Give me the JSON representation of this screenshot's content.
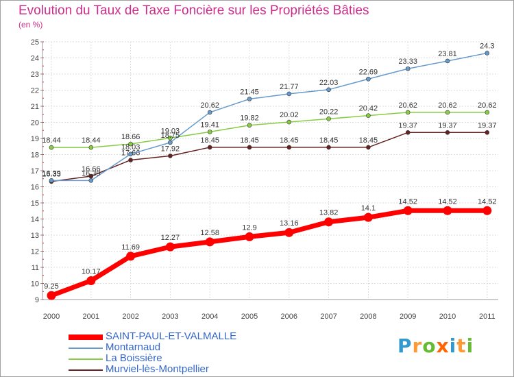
{
  "chart_data": {
    "type": "line",
    "title": "Evolution du Taux de Taxe Foncière sur les Propriétés Bâties",
    "ylabel": "(en %)",
    "xlabel": "",
    "categories": [
      "2000",
      "2001",
      "2002",
      "2003",
      "2004",
      "2005",
      "2006",
      "2007",
      "2008",
      "2009",
      "2010",
      "2011"
    ],
    "ylim": [
      9,
      25
    ],
    "yticks": [
      9,
      10,
      11,
      12,
      13,
      14,
      15,
      16,
      17,
      18,
      19,
      20,
      21,
      22,
      23,
      24,
      25
    ],
    "grid": true,
    "series": [
      {
        "name": "SAINT-PAUL-ET-VALMALLE",
        "color": "#ff0000",
        "values": [
          9.25,
          10.17,
          11.69,
          12.27,
          12.58,
          12.9,
          13.16,
          13.82,
          14.1,
          14.52,
          14.52,
          14.52
        ],
        "labels": [
          "9.25",
          "10.17",
          "11.69",
          "12.27",
          "12.58",
          "12.9",
          "13.16",
          "13.82",
          "14.1",
          "14.52",
          "14.52",
          "14.52"
        ]
      },
      {
        "name": "Montarnaud",
        "color": "#6699cc",
        "values": [
          16.39,
          16.39,
          18.03,
          18.75,
          20.62,
          21.45,
          21.77,
          22.03,
          22.69,
          23.33,
          23.81,
          24.3
        ],
        "labels": [
          "16.39",
          "16.39",
          "18.03",
          "18.75",
          "20.62",
          "21.45",
          "21.77",
          "22.03",
          "22.69",
          "23.33",
          "23.81",
          "24.3"
        ]
      },
      {
        "name": "La Boissière",
        "color": "#88cc44",
        "values": [
          18.44,
          18.44,
          18.66,
          19.03,
          19.41,
          19.82,
          20.02,
          20.22,
          20.42,
          20.62,
          20.62,
          20.62
        ],
        "labels": [
          "18.44",
          "18.44",
          "18.66",
          "19.03",
          "19.41",
          "19.82",
          "20.02",
          "20.22",
          "20.42",
          "20.62",
          "20.62",
          "20.62"
        ]
      },
      {
        "name": "Murviel-lès-Montpellier",
        "color": "#662222",
        "values": [
          16.33,
          16.66,
          17.66,
          17.92,
          18.45,
          18.45,
          18.45,
          18.45,
          18.45,
          19.37,
          19.37,
          19.37
        ],
        "labels": [
          "16.33",
          "16.66",
          "17.66",
          "17.92",
          "18.45",
          "18.45",
          "18.45",
          "18.45",
          "18.45",
          "19.37",
          "19.37",
          "19.37"
        ]
      }
    ]
  },
  "logo": {
    "text": "Proxiti",
    "letters": [
      "P",
      "r",
      "o",
      "x",
      "i",
      "t",
      "i"
    ]
  }
}
